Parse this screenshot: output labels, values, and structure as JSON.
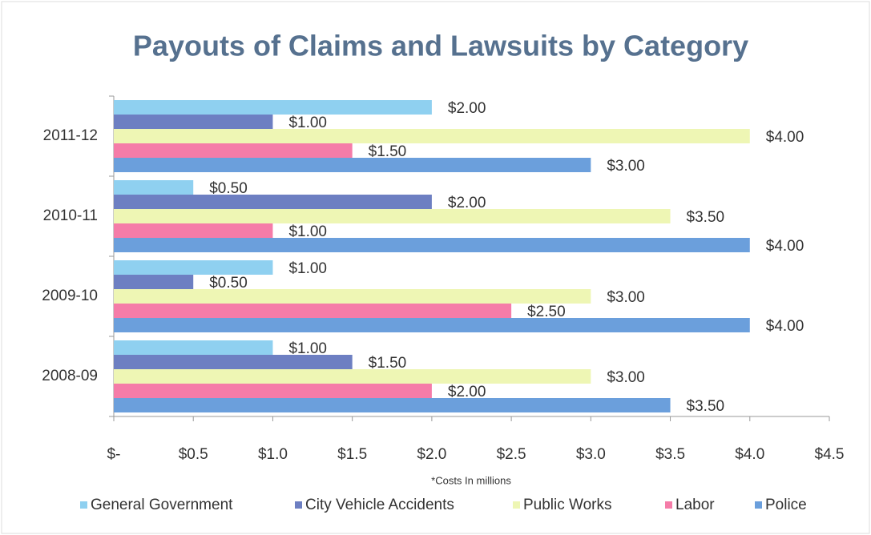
{
  "chart_data": {
    "type": "hbar",
    "title": "Payouts of Claims and Lawsuits by Category",
    "categories": [
      "2011-12",
      "2010-11",
      "2009-10",
      "2008-09"
    ],
    "series": [
      {
        "name": "General Government",
        "color": "#8fd0f0",
        "values": [
          2.0,
          0.5,
          1.0,
          1.0
        ],
        "value_labels": [
          "$2.00",
          "$0.50",
          "$1.00",
          "$1.00"
        ]
      },
      {
        "name": "City Vehicle Accidents",
        "color": "#6d7fc2",
        "values": [
          1.0,
          2.0,
          0.5,
          1.5
        ],
        "value_labels": [
          "$1.00",
          "$2.00",
          "$0.50",
          "$1.50"
        ]
      },
      {
        "name": "Public Works",
        "color": "#eef6b4",
        "values": [
          4.0,
          3.5,
          3.0,
          3.0
        ],
        "value_labels": [
          "$4.00",
          "$3.50",
          "$3.00",
          "$3.00"
        ]
      },
      {
        "name": "Labor",
        "color": "#f57ca8",
        "values": [
          1.5,
          1.0,
          2.5,
          2.0
        ],
        "value_labels": [
          "$1.50",
          "$1.00",
          "$2.50",
          "$2.00"
        ]
      },
      {
        "name": "Police",
        "color": "#6b9fdc",
        "values": [
          3.0,
          4.0,
          4.0,
          3.5
        ],
        "value_labels": [
          "$3.00",
          "$4.00",
          "$4.00",
          "$3.50"
        ]
      }
    ],
    "xlim": [
      0,
      4.5
    ],
    "xticks": [
      {
        "value": 0,
        "label": "$-"
      },
      {
        "value": 0.5,
        "label": "$0.5"
      },
      {
        "value": 1,
        "label": "$1.0"
      },
      {
        "value": 1.5,
        "label": "$1.5"
      },
      {
        "value": 2,
        "label": "$2.0"
      },
      {
        "value": 2.5,
        "label": "$2.5"
      },
      {
        "value": 3,
        "label": "$3.0"
      },
      {
        "value": 3.5,
        "label": "$3.5"
      },
      {
        "value": 4,
        "label": "$4.0"
      },
      {
        "value": 4.5,
        "label": "$4.5"
      }
    ],
    "x_label": "*Costs In millions",
    "legend": "bottom"
  }
}
